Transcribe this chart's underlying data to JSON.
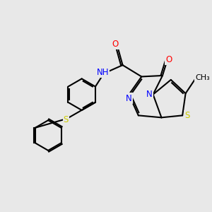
{
  "bg_color": "#e8e8e8",
  "bond_color": "#000000",
  "line_width": 1.5,
  "atom_colors": {
    "N": "#0000ff",
    "O": "#ff0000",
    "S": "#cccc00",
    "C": "#000000",
    "H": "#000000"
  }
}
